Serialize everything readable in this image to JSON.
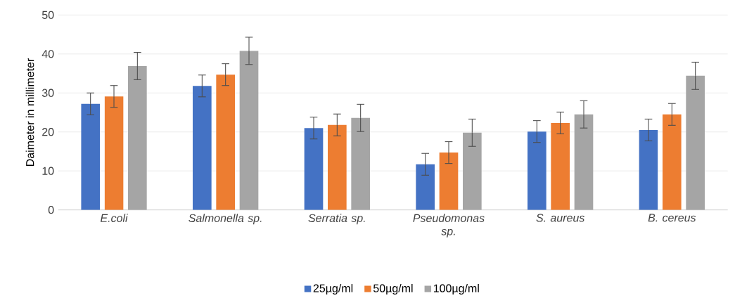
{
  "chart_data": {
    "type": "bar",
    "ylabel": "Daimeter in millimeter",
    "categories": [
      "E.coli",
      "Salmonella sp.",
      "Serratia sp.",
      "Pseudomonas sp.",
      "S. aureus",
      "B. cereus"
    ],
    "series": [
      {
        "name": "25µg/ml",
        "color": "#4472c4",
        "values": [
          27.2,
          31.8,
          21.0,
          11.7,
          20.1,
          20.5
        ],
        "errors": [
          2.8,
          2.8,
          2.8,
          2.8,
          2.8,
          2.8
        ]
      },
      {
        "name": "50µg/ml",
        "color": "#ed7d31",
        "values": [
          29.1,
          34.7,
          21.8,
          14.7,
          22.3,
          24.5
        ],
        "errors": [
          2.8,
          2.8,
          2.8,
          2.8,
          2.8,
          2.8
        ]
      },
      {
        "name": "100µg/ml",
        "color": "#a5a5a5",
        "values": [
          36.9,
          40.8,
          23.6,
          19.8,
          24.5,
          34.4
        ],
        "errors": [
          3.5,
          3.5,
          3.5,
          3.5,
          3.5,
          3.5
        ]
      }
    ],
    "ylim": [
      0,
      50
    ],
    "yticks": [
      0,
      10,
      20,
      30,
      40,
      50
    ],
    "grid": "y",
    "legend": "bottom"
  }
}
